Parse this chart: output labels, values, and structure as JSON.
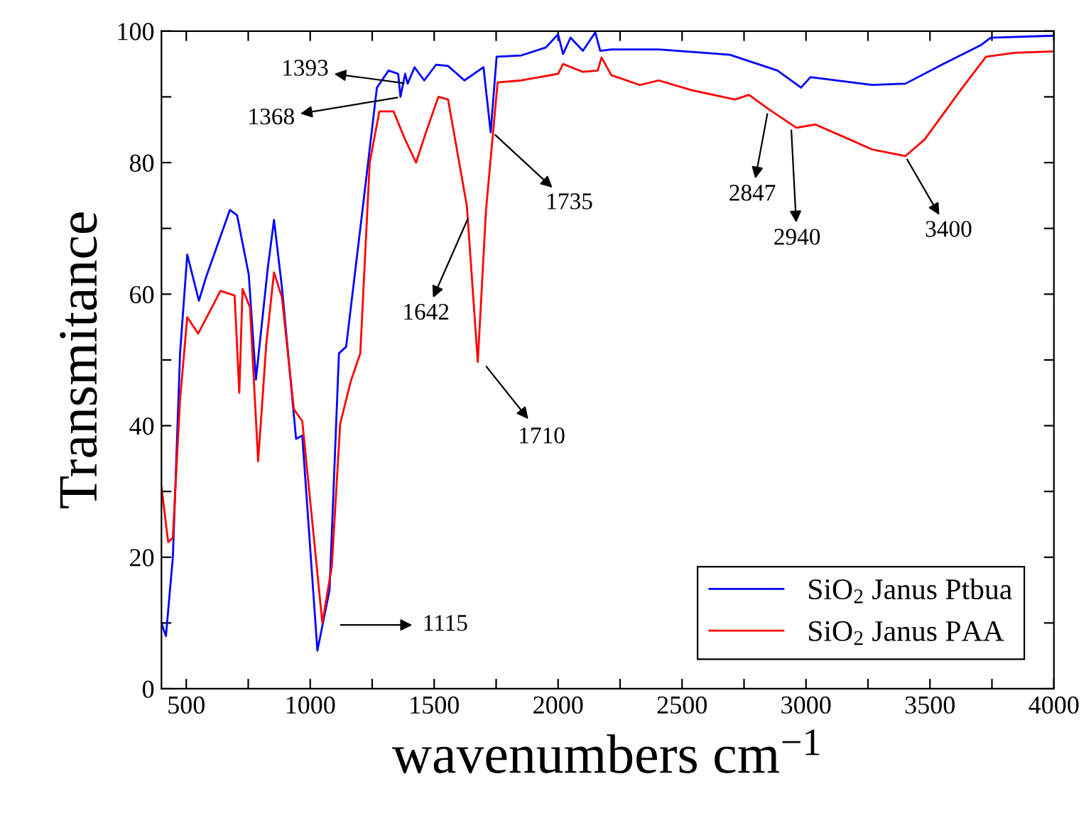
{
  "chart_data": {
    "type": "line",
    "xlabel": "wavenumbers cm$^{−1}$",
    "ylabel": "Transmitance",
    "xlim": [
      400,
      4000
    ],
    "ylim": [
      0,
      100
    ],
    "xticks": [
      500,
      {
        "value": 750,
        "label": null
      },
      1000,
      {
        "value": 1250,
        "label": null
      },
      1500,
      {
        "value": 1750,
        "label": null
      },
      2000,
      {
        "value": 2250,
        "label": null
      },
      2500,
      {
        "value": 2750,
        "label": null
      },
      3000,
      {
        "value": 3250,
        "label": null
      },
      3500,
      {
        "value": 3750,
        "label": null
      },
      4000
    ],
    "yticks": [
      0,
      {
        "value": 10,
        "label": null
      },
      20,
      {
        "value": 30,
        "label": null
      },
      40,
      {
        "value": 50,
        "label": null
      },
      60,
      {
        "value": 70,
        "label": null
      },
      80,
      {
        "value": 90,
        "label": null
      },
      100
    ],
    "grid": false,
    "legend": "bottom right",
    "marker": "none",
    "line_style": "solid",
    "series": [
      {
        "name": "SiO$_{2}$ Janus Ptbua",
        "color": "#0000ff",
        "x": [
          400,
          418,
          446,
          475,
          504,
          551,
          580,
          676,
          705,
          752,
          781,
          829,
          854,
          886,
          943,
          968,
          1029,
          1078,
          1116,
          1145,
          1211,
          1269,
          1316,
          1355,
          1364,
          1383,
          1393,
          1421,
          1460,
          1508,
          1556,
          1622,
          1699,
          1728,
          1752,
          1852,
          1950,
          2000,
          2020,
          2050,
          2100,
          2150,
          2170,
          2215,
          2406,
          2693,
          2885,
          2980,
          3018,
          3267,
          3401,
          3554,
          3707,
          3745,
          4000
        ],
        "values": [
          10,
          8,
          20,
          51,
          66,
          59,
          62.6,
          72.8,
          72,
          63,
          47,
          64,
          71.3,
          61,
          38,
          38.5,
          5.8,
          15,
          51,
          52,
          72.8,
          91.4,
          94,
          93.5,
          90,
          93.5,
          92,
          94.5,
          92.5,
          94.9,
          94.7,
          92.5,
          94.5,
          84.6,
          96.1,
          96.3,
          97.5,
          99.5,
          96.5,
          99,
          97,
          99.8,
          97,
          97.2,
          97.2,
          96.4,
          94,
          91.4,
          93,
          91.8,
          92,
          95,
          97.9,
          99,
          99.3
        ]
      },
      {
        "name": "SiO$_{2}$ Janus PAA",
        "color": "#ff0000",
        "x": [
          400,
          427,
          446,
          475,
          504,
          548,
          638,
          695,
          714,
          727,
          757,
          790,
          823,
          854,
          886,
          934,
          968,
          1049,
          1087,
          1121,
          1164,
          1202,
          1240,
          1279,
          1336,
          1383,
          1427,
          1466,
          1517,
          1556,
          1632,
          1676,
          1709,
          1756,
          1852,
          2000,
          2020,
          2100,
          2160,
          2175,
          2215,
          2330,
          2406,
          2540,
          2713,
          2770,
          2847,
          2961,
          3037,
          3153,
          3267,
          3401,
          3478,
          3631,
          3726,
          3841,
          4000
        ],
        "values": [
          30.7,
          22.3,
          23,
          44,
          56.5,
          54,
          60.5,
          59.8,
          45,
          60.8,
          58,
          34.6,
          52.5,
          63.3,
          59.5,
          42.5,
          40.7,
          10,
          18.6,
          40.3,
          46.8,
          51,
          80,
          87.8,
          87.8,
          83.5,
          80,
          84.5,
          90,
          89.6,
          73.4,
          49.7,
          72.7,
          92.2,
          92.5,
          93.5,
          95,
          93.8,
          94,
          96,
          93.3,
          91.8,
          92.5,
          91,
          89.6,
          90.3,
          88.2,
          85.3,
          85.8,
          83.9,
          82,
          81,
          83.5,
          91.4,
          96.1,
          96.7,
          96.9
        ]
      }
    ],
    "annotations": [
      {
        "text": "1393",
        "x": 1393,
        "y": 92
      },
      {
        "text": "1368",
        "x": 1368,
        "y": 90
      },
      {
        "text": "1735",
        "x": 1735,
        "y": 84.6
      },
      {
        "text": "1642",
        "x": 1642,
        "y": 72
      },
      "1710",
      "1115",
      {
        "text": "2847",
        "x": 2847,
        "y": 88
      },
      {
        "text": "2940",
        "x": 2940,
        "y": 85.5
      },
      {
        "text": "3400",
        "x": 3400,
        "y": 81
      }
    ]
  }
}
